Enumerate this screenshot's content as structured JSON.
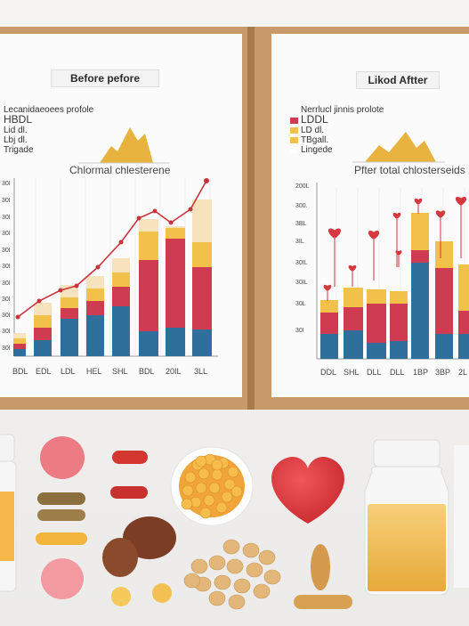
{
  "left_chart": {
    "title": "Before pefore",
    "legend_heading": "Lecanidaeoees profole",
    "legend_items": [
      "HBDL",
      "Lid dl.",
      "Lbj dl.",
      "Trigade"
    ],
    "subtitle": "Chlormal chlesterene",
    "x_labels": [
      "BDL",
      "EDL",
      "LDL",
      "HEL",
      "SHL",
      "BDL",
      "20IL",
      "3LL"
    ],
    "y_labels": [
      "30I",
      "30I",
      "30I",
      "30I",
      "30I",
      "30I",
      "30I",
      "30I",
      "30I",
      "30I",
      "30I"
    ]
  },
  "right_chart": {
    "title": "Likod Aftter",
    "legend_heading": "Nerrlucl jinnis prolote",
    "legend_items": [
      "LDDL",
      "LD dl.",
      "TBgall.",
      "Lingede"
    ],
    "subtitle": "Pfter total chlosterseids",
    "x_labels": [
      "DDL",
      "SHL",
      "DLL",
      "DLL",
      "1BP",
      "3BP",
      "2L"
    ],
    "y_labels": [
      "200L",
      "300.",
      "3BL",
      "3IL",
      "30IL",
      "30IL",
      "30L",
      "30I"
    ]
  },
  "colors": {
    "blue": "#2f6f9c",
    "red": "#cf3b50",
    "yellow": "#f2c14a",
    "cream": "#f6e2bd",
    "trend": "#c8343c"
  }
}
